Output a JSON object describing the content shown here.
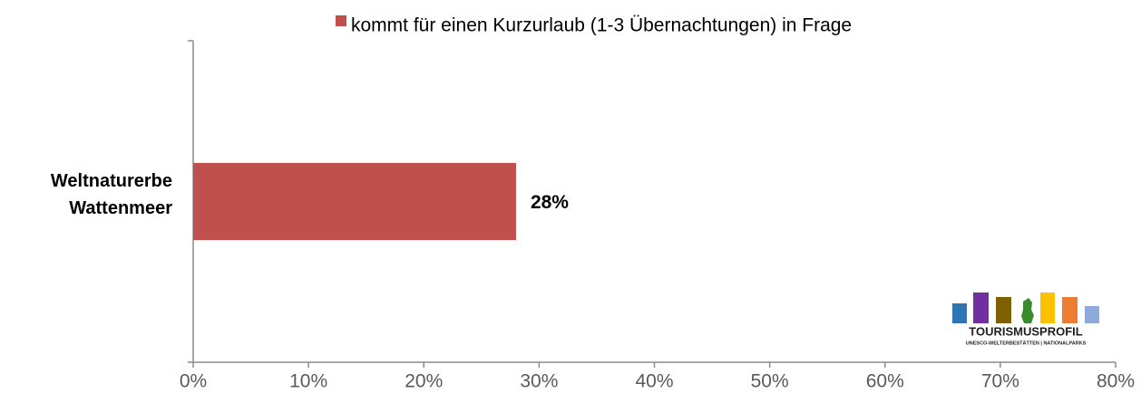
{
  "chart_data": {
    "type": "hbar",
    "categories": [
      "Weltnaturerbe Wattenmeer"
    ],
    "series": [
      {
        "name": "kommt für einen Kurzurlaub (1-3 Übernachtungen) in Frage",
        "color": "#c0504d",
        "values": [
          28
        ],
        "value_labels": [
          "28%"
        ]
      }
    ],
    "xlim": [
      0,
      80
    ],
    "xticks": [
      {
        "value": 0,
        "label": "0%"
      },
      {
        "value": 10,
        "label": "10%"
      },
      {
        "value": 20,
        "label": "20%"
      },
      {
        "value": 30,
        "label": "30%"
      },
      {
        "value": 40,
        "label": "40%"
      },
      {
        "value": 50,
        "label": "50%"
      },
      {
        "value": 60,
        "label": "60%"
      },
      {
        "value": 70,
        "label": "70%"
      },
      {
        "value": 80,
        "label": "80%"
      }
    ],
    "legend": "top",
    "logo": {
      "title": "TOURISMUSPROFIL",
      "subtitle": "UNESCO-WELTERBESTÄTTEN | NATIONALPARKS"
    }
  }
}
